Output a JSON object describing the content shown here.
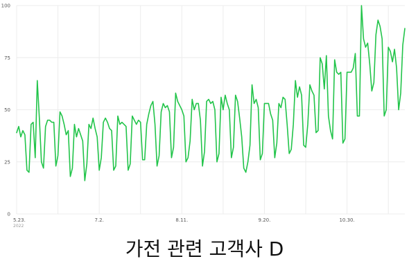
{
  "caption": "가전 관련 고객사 D",
  "chart_data": {
    "type": "line",
    "title": "",
    "xlabel": "",
    "ylabel": "",
    "ylim": [
      0,
      100
    ],
    "yticks": [
      0,
      25,
      50,
      75,
      100
    ],
    "grid": true,
    "color": "#22c44a",
    "x_start_label": "2022",
    "xticks": [
      {
        "index": 0,
        "label": "5.23."
      },
      {
        "index": 40,
        "label": "7.2."
      },
      {
        "index": 80,
        "label": "8.11."
      },
      {
        "index": 120,
        "label": "9.20."
      },
      {
        "index": 160,
        "label": "10.30."
      }
    ],
    "series": [
      {
        "values": [
          39,
          42,
          37,
          40,
          38,
          21,
          20,
          43,
          44,
          27,
          64,
          46,
          25,
          22,
          42,
          45,
          45,
          44,
          44,
          23,
          28,
          49,
          47,
          43,
          38,
          40,
          18,
          22,
          43,
          37,
          41,
          38,
          35,
          16,
          24,
          43,
          41,
          46,
          41,
          37,
          21,
          27,
          44,
          46,
          44,
          41,
          40,
          21,
          23,
          47,
          43,
          44,
          43,
          42,
          21,
          24,
          47,
          45,
          43,
          45,
          44,
          26,
          26,
          43,
          48,
          52,
          54,
          43,
          23,
          28,
          49,
          53,
          51,
          52,
          49,
          27,
          32,
          58,
          54,
          52,
          50,
          47,
          25,
          27,
          35,
          55,
          50,
          53,
          53,
          45,
          23,
          30,
          54,
          55,
          53,
          54,
          50,
          25,
          29,
          56,
          50,
          57,
          53,
          50,
          27,
          32,
          57,
          54,
          46,
          37,
          22,
          20,
          25,
          33,
          62,
          53,
          55,
          51,
          26,
          29,
          53,
          53,
          53,
          48,
          45,
          27,
          34,
          53,
          51,
          56,
          55,
          43,
          29,
          31,
          43,
          64,
          56,
          61,
          57,
          33,
          32,
          43,
          62,
          59,
          57,
          39,
          40,
          75,
          72,
          60,
          76,
          47,
          40,
          36,
          74,
          68,
          67,
          68,
          34,
          36,
          68,
          68,
          68,
          70,
          77,
          47,
          47,
          100,
          84,
          80,
          82,
          72,
          59,
          63,
          86,
          93,
          90,
          84,
          47,
          50,
          80,
          78,
          73,
          79,
          70,
          50,
          58,
          81,
          89
        ]
      }
    ]
  }
}
